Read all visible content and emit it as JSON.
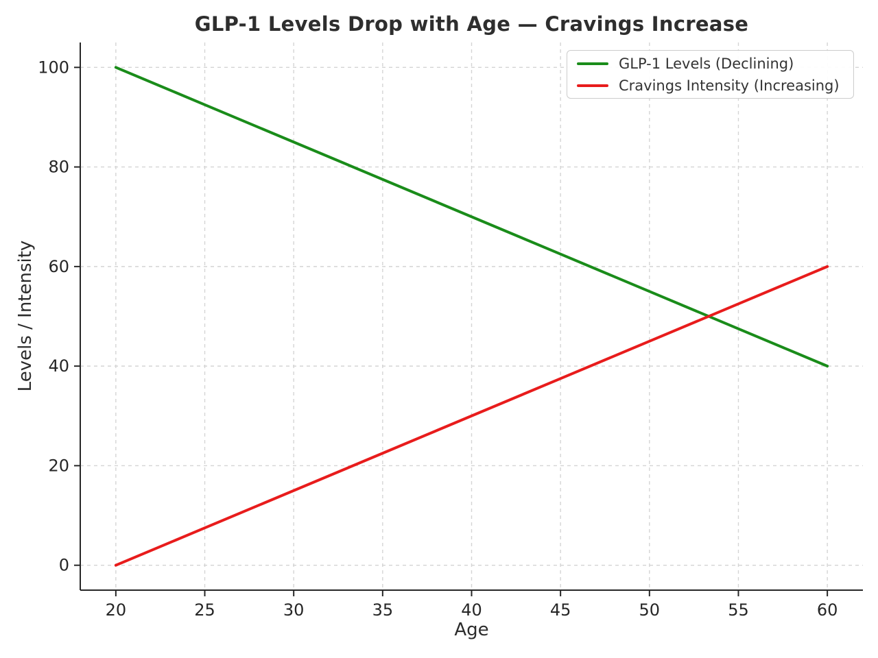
{
  "chart_data": {
    "type": "line",
    "title": "GLP-1 Levels Drop with Age — Cravings Increase",
    "xlabel": "Age",
    "ylabel": "Levels / Intensity",
    "x": [
      20,
      25,
      30,
      35,
      40,
      45,
      50,
      55,
      60
    ],
    "series": [
      {
        "name": "GLP-1 Levels (Declining)",
        "color": "#1a8c1a",
        "values": [
          100,
          92.5,
          85,
          77.5,
          70,
          62.5,
          55,
          47.5,
          40
        ]
      },
      {
        "name": "Cravings Intensity (Increasing)",
        "color": "#e81c1c",
        "values": [
          0,
          7.5,
          15,
          22.5,
          30,
          37.5,
          45,
          52.5,
          60
        ]
      }
    ],
    "x_ticks": [
      20,
      25,
      30,
      35,
      40,
      45,
      50,
      55,
      60
    ],
    "y_ticks": [
      0,
      20,
      40,
      60,
      80,
      100
    ],
    "xlim": [
      18,
      62
    ],
    "ylim": [
      -5,
      105
    ],
    "grid": true,
    "grid_style": "dashed",
    "legend_position": "upper right"
  },
  "styles": {
    "background": "#ffffff",
    "title_color": "#2e2e2e",
    "label_color": "#2b2b2b",
    "tick_label_color": "#262626",
    "axis_color": "#262626",
    "grid_color": "#d4d4d4",
    "legend_border_color": "#cccccc",
    "legend_text_color": "#333333",
    "line_width": 4
  }
}
